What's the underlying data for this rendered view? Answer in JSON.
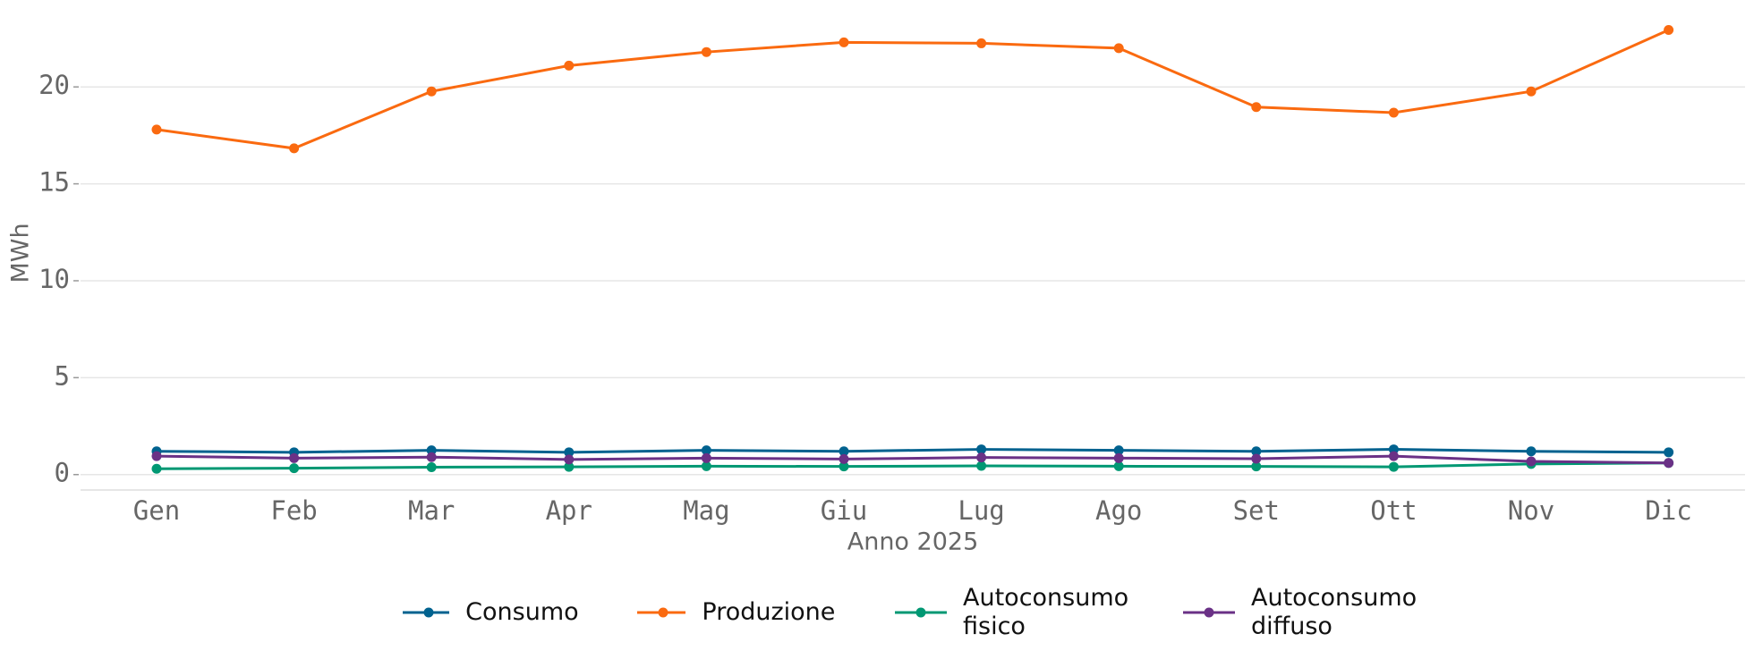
{
  "chart_data": {
    "type": "line",
    "x_label": "Anno 2025",
    "y_label": "MWh",
    "categories": [
      "Gen",
      "Feb",
      "Mar",
      "Apr",
      "Mag",
      "Giu",
      "Lug",
      "Ago",
      "Set",
      "Ott",
      "Nov",
      "Dic"
    ],
    "series": [
      {
        "name": "Consumo",
        "color": "#00628f",
        "values": [
          1.2,
          1.15,
          1.25,
          1.15,
          1.25,
          1.2,
          1.3,
          1.25,
          1.2,
          1.3,
          1.2,
          1.15
        ]
      },
      {
        "name": "Produzione",
        "color": "#fa6a10",
        "values": [
          17.8,
          16.83,
          19.77,
          21.1,
          21.8,
          22.3,
          22.25,
          22.0,
          18.96,
          18.67,
          19.77,
          22.94
        ]
      },
      {
        "name": "Autoconsumo fisico",
        "color": "#009873",
        "values": [
          0.3,
          0.33,
          0.38,
          0.4,
          0.43,
          0.42,
          0.45,
          0.43,
          0.42,
          0.4,
          0.55,
          0.6
        ]
      },
      {
        "name": "Autoconsumo diffuso",
        "color": "#6a3186",
        "values": [
          0.95,
          0.85,
          0.9,
          0.78,
          0.85,
          0.8,
          0.88,
          0.85,
          0.82,
          0.95,
          0.68,
          0.6
        ]
      }
    ],
    "ylim": [
      -0.75,
      24
    ],
    "yticks": [
      0,
      5,
      10,
      15,
      20
    ],
    "grid": true,
    "legend": "bottom"
  }
}
